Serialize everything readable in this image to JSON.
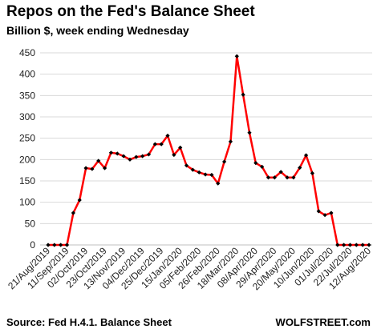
{
  "header": {
    "title": "Repos on the Fed's Balance Sheet",
    "subtitle": "Billion $, week ending Wednesday"
  },
  "footer": {
    "source": "Source: Fed H.4.1. Balance Sheet",
    "brand": "WOLFSTREET.com"
  },
  "colors": {
    "line": "#ff0000",
    "marker": "#000000",
    "grid": "#d9d9d9",
    "axis": "#bfbfbf"
  },
  "chart_data": {
    "type": "line",
    "title": "Repos on the Fed's Balance Sheet",
    "subtitle": "Billion $, week ending Wednesday",
    "xlabel": "",
    "ylabel": "",
    "ylim": [
      0,
      450
    ],
    "yticks": [
      0,
      50,
      100,
      150,
      200,
      250,
      300,
      350,
      400,
      450
    ],
    "grid": "horizontal",
    "legend": "none",
    "x_tick_labels": [
      "21/Aug/2019",
      "11/Sep/2019",
      "02/Oct/2019",
      "23/Oct/2019",
      "13/Nov/2019",
      "04/Dec/2019",
      "25/Dec/2019",
      "15/Jan/2020",
      "05/Feb/2020",
      "26/Feb/2020",
      "18/Mar/2020",
      "08/Apr/2020",
      "29/Apr/2020",
      "20/May/2020",
      "10/Jun/2020",
      "01/Jul/2020",
      "22/Jul/2020",
      "12/Aug/2020"
    ],
    "x": [
      "21/Aug/2019",
      "28/Aug/2019",
      "04/Sep/2019",
      "11/Sep/2019",
      "18/Sep/2019",
      "25/Sep/2019",
      "02/Oct/2019",
      "09/Oct/2019",
      "16/Oct/2019",
      "23/Oct/2019",
      "30/Oct/2019",
      "06/Nov/2019",
      "13/Nov/2019",
      "20/Nov/2019",
      "27/Nov/2019",
      "04/Dec/2019",
      "11/Dec/2019",
      "18/Dec/2019",
      "25/Dec/2019",
      "01/Jan/2020",
      "08/Jan/2020",
      "15/Jan/2020",
      "22/Jan/2020",
      "29/Jan/2020",
      "05/Feb/2020",
      "12/Feb/2020",
      "19/Feb/2020",
      "26/Feb/2020",
      "04/Mar/2020",
      "11/Mar/2020",
      "18/Mar/2020",
      "25/Mar/2020",
      "01/Apr/2020",
      "08/Apr/2020",
      "15/Apr/2020",
      "22/Apr/2020",
      "29/Apr/2020",
      "06/May/2020",
      "13/May/2020",
      "20/May/2020",
      "27/May/2020",
      "03/Jun/2020",
      "10/Jun/2020",
      "17/Jun/2020",
      "24/Jun/2020",
      "01/Jul/2020",
      "08/Jul/2020",
      "15/Jul/2020",
      "22/Jul/2020",
      "29/Jul/2020",
      "05/Aug/2020",
      "12/Aug/2020"
    ],
    "series": [
      {
        "values": [
          0,
          0,
          0,
          0,
          75,
          105,
          180,
          178,
          197,
          180,
          216,
          214,
          208,
          200,
          206,
          208,
          212,
          236,
          236,
          256,
          211,
          228,
          186,
          176,
          170,
          165,
          164,
          144,
          195,
          242,
          442,
          352,
          263,
          192,
          183,
          158,
          158,
          171,
          158,
          158,
          181,
          210,
          168,
          79,
          70,
          75,
          0,
          0,
          0,
          0,
          0,
          0
        ]
      }
    ]
  }
}
